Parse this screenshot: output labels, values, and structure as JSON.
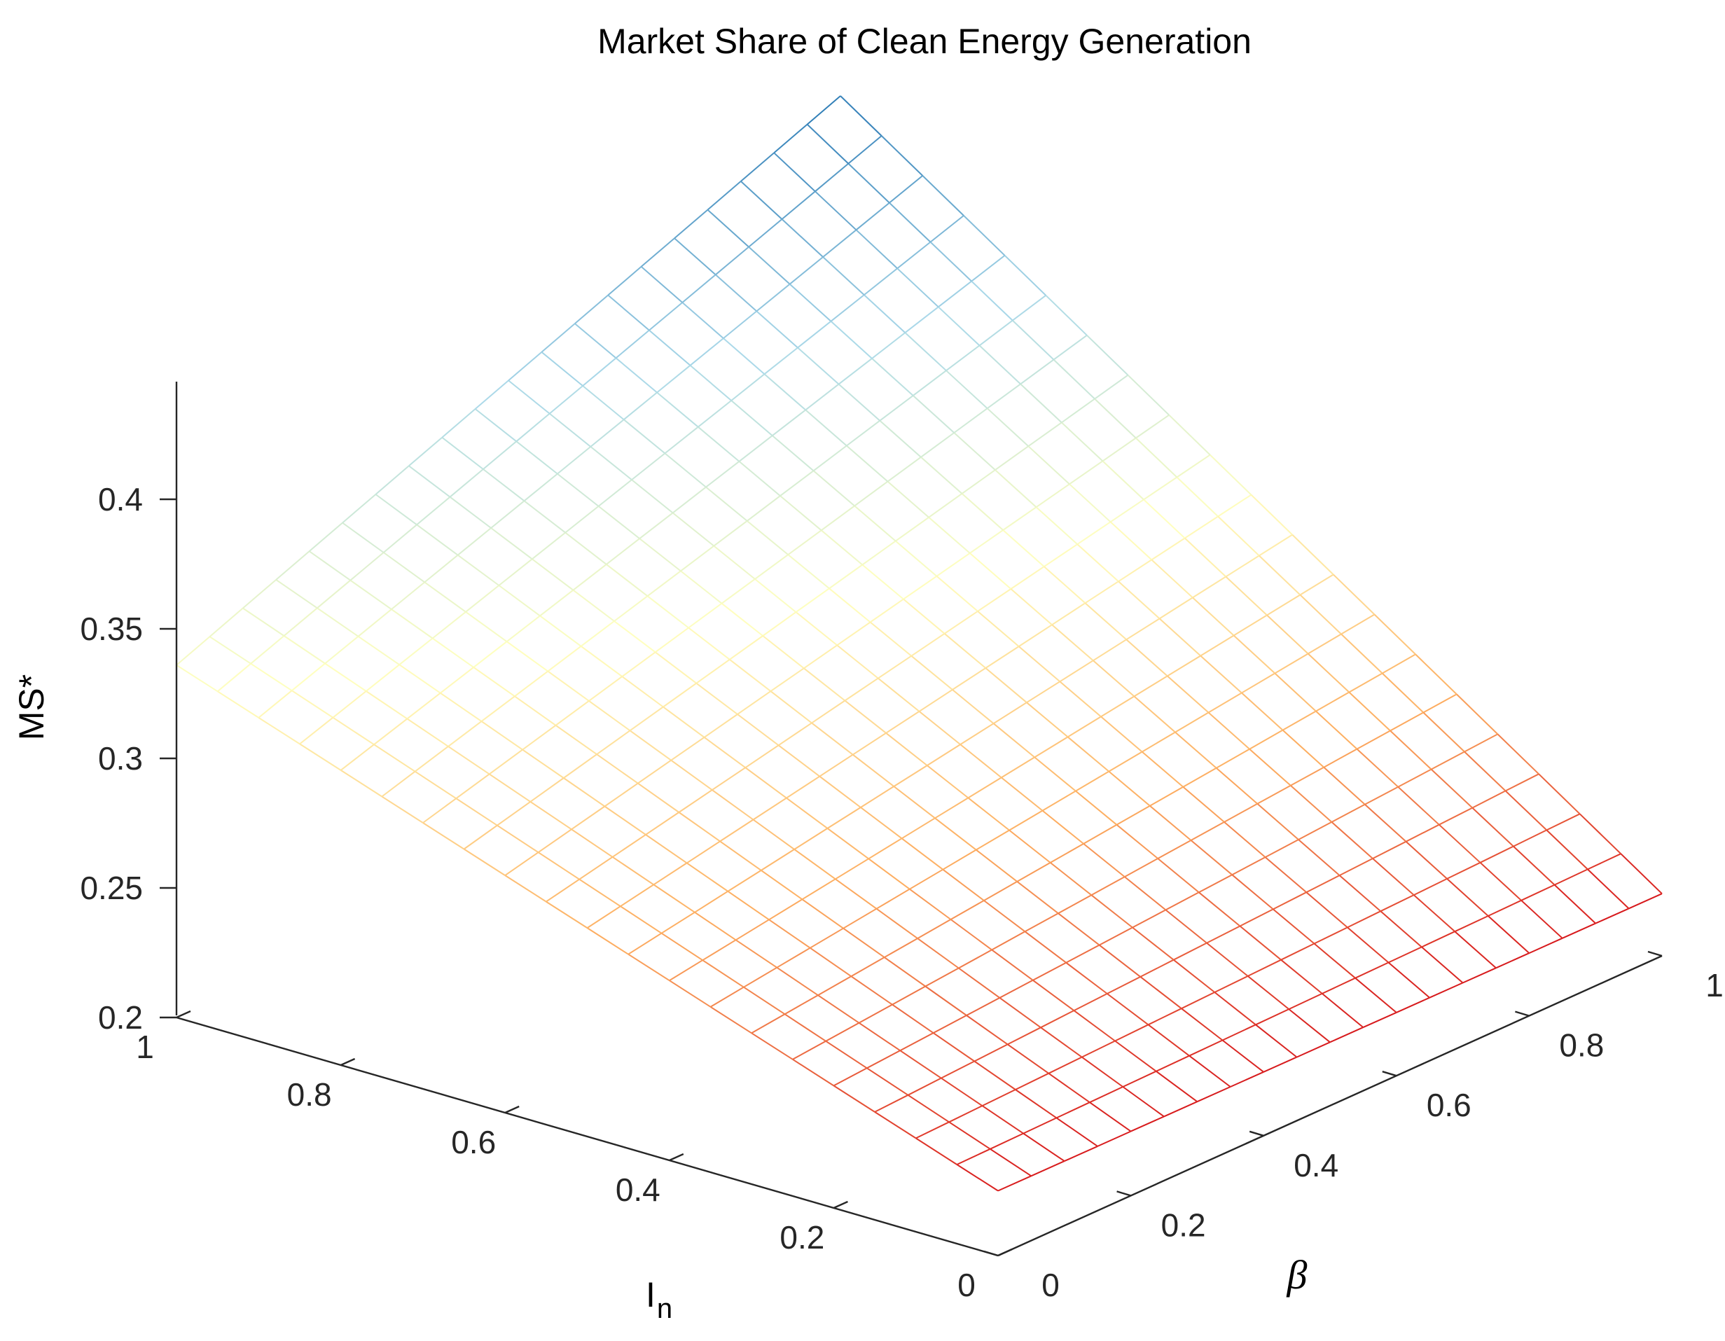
{
  "chart_data": {
    "type": "surface",
    "title": "Market Share of Clean Energy Generation",
    "zlabel": "MS*",
    "xlabel_base": "I",
    "xlabel_sub": "n",
    "ylabel": "β",
    "x_range": [
      0,
      1
    ],
    "y_range": [
      0,
      1
    ],
    "z_range": [
      0.2,
      0.44
    ],
    "grid_points": 21,
    "corner_values": {
      "I0_beta0": 0.225,
      "I0_beta1": 0.224,
      "I1_beta0": 0.336,
      "I1_beta1": 0.44
    },
    "x_ticks": [
      "0",
      "0.2",
      "0.4",
      "0.6",
      "0.8",
      "1"
    ],
    "y_ticks": [
      "0",
      "0.2",
      "0.4",
      "0.6",
      "0.8",
      "1"
    ],
    "z_ticks": [
      "0.2",
      "0.25",
      "0.3",
      "0.35",
      "0.4"
    ],
    "colormap": [
      "#d7191c",
      "#fdae61",
      "#ffffbf",
      "#abd9e9",
      "#2c7bb6"
    ],
    "grid": false
  }
}
